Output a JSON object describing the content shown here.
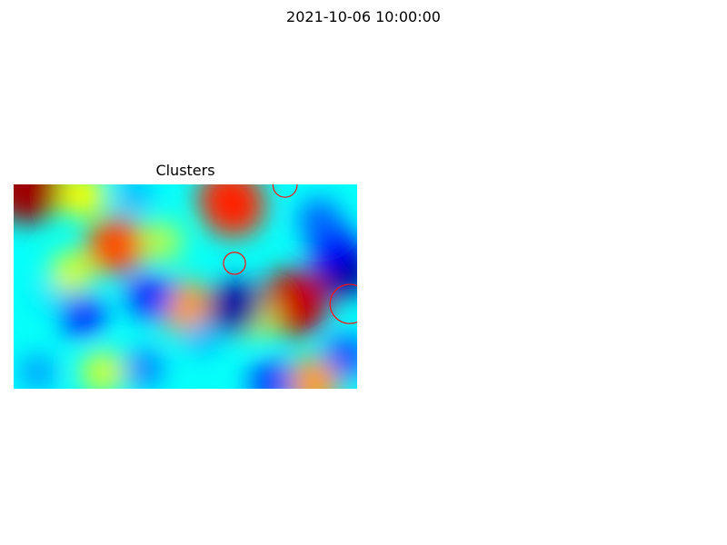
{
  "figure": {
    "suptitle": "2021-10-06 10:00:00"
  },
  "chart_data": {
    "type": "heatmap",
    "title": "Clusters",
    "colormap": "jet",
    "axes_visible": false,
    "grid": false,
    "heat_blobs": [
      {
        "x": 0.04,
        "y": 0.02,
        "value": 0.97
      },
      {
        "x": 0.3,
        "y": 0.3,
        "value": 0.8
      },
      {
        "x": 0.5,
        "y": 0.6,
        "value": 0.72
      },
      {
        "x": 0.64,
        "y": 0.11,
        "value": 0.83
      },
      {
        "x": 0.815,
        "y": 0.58,
        "value": 0.93
      },
      {
        "x": 0.63,
        "y": 0.07,
        "value": 0.84
      },
      {
        "x": 0.87,
        "y": 0.97,
        "value": 0.72
      },
      {
        "x": 0.2,
        "y": 0.05,
        "value": 0.62
      },
      {
        "x": 0.7,
        "y": 0.65,
        "value": 0.58
      },
      {
        "x": 0.43,
        "y": 0.28,
        "value": 0.55
      },
      {
        "x": 0.17,
        "y": 0.43,
        "value": 0.58
      },
      {
        "x": 0.26,
        "y": 0.92,
        "value": 0.58
      },
      {
        "x": 0.55,
        "y": 0.75,
        "value": 0.3
      },
      {
        "x": 0.645,
        "y": 0.6,
        "value": 0.03
      },
      {
        "x": 0.965,
        "y": 0.42,
        "value": 0.02
      },
      {
        "x": 0.93,
        "y": 0.3,
        "value": 0.12
      },
      {
        "x": 0.2,
        "y": 0.64,
        "value": 0.17
      },
      {
        "x": 0.4,
        "y": 0.55,
        "value": 0.16
      },
      {
        "x": 0.38,
        "y": 0.9,
        "value": 0.25
      },
      {
        "x": 0.07,
        "y": 0.92,
        "value": 0.28
      },
      {
        "x": 0.89,
        "y": 0.17,
        "value": 0.22
      },
      {
        "x": 0.97,
        "y": 0.84,
        "value": 0.2
      },
      {
        "x": 0.1,
        "y": 0.55,
        "value": 0.35
      },
      {
        "x": 0.75,
        "y": 0.97,
        "value": 0.18
      },
      {
        "x": 0.35,
        "y": 0.05,
        "value": 0.3
      }
    ],
    "background_value": 0.38,
    "cluster_markers": [
      {
        "x": 0.643,
        "y": 0.614,
        "r": 0.032,
        "color": "#ff1010"
      },
      {
        "x": 0.79,
        "y": 0.996,
        "r": 0.035,
        "color": "#ff1010"
      },
      {
        "x": 0.978,
        "y": 0.415,
        "r": 0.057,
        "color": "#ff1010"
      }
    ]
  }
}
